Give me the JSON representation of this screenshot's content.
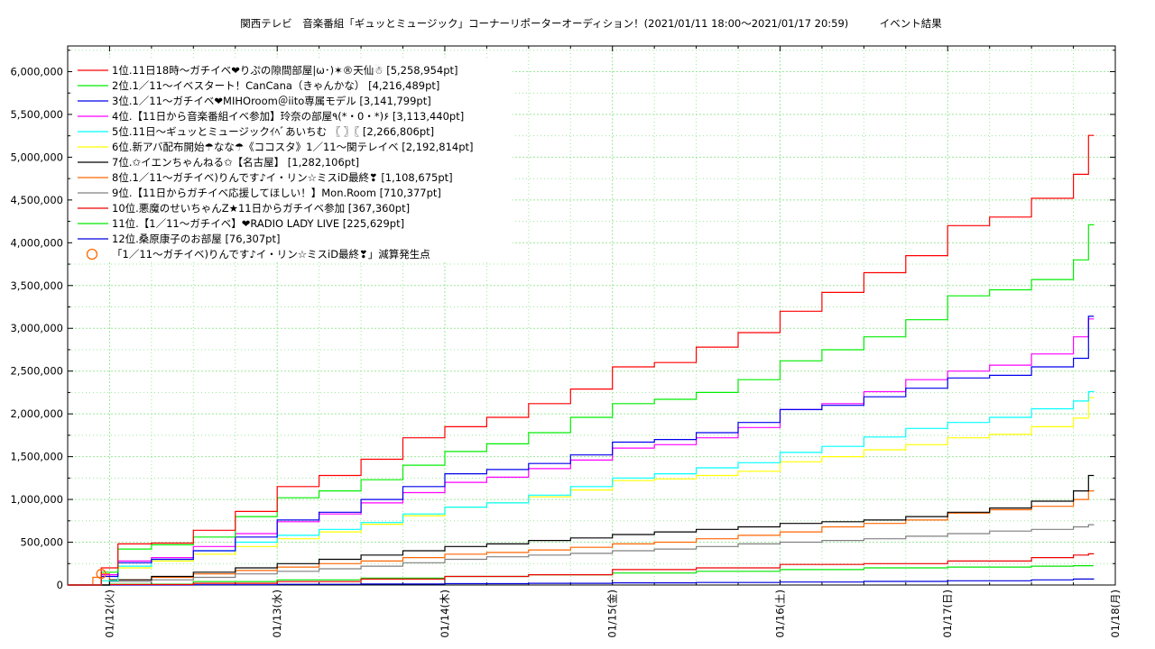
{
  "header": {
    "title": "関西テレビ　音楽番組「ギュッとミュージック」コーナーリポーターオーディション！(2021/01/11 18:00〜2021/01/17 20:59)　　　イベント結果"
  },
  "colors": {
    "grid": "#9be89b",
    "axis": "#000000",
    "marker": "#ff6a00"
  },
  "chart_data": {
    "type": "line",
    "xlim": [
      0,
      6
    ],
    "ylim": [
      0,
      6300000
    ],
    "y_ticks": [
      0,
      500000,
      1000000,
      1500000,
      2000000,
      2500000,
      3000000,
      3500000,
      4000000,
      4500000,
      5000000,
      5500000,
      6000000
    ],
    "y_tick_labels": [
      "0",
      "500,000",
      "1,000,000",
      "1,500,000",
      "2,000,000",
      "2,500,000",
      "3,000,000",
      "3,500,000",
      "4,000,000",
      "4,500,000",
      "5,000,000",
      "5,500,000",
      "6,000,000"
    ],
    "x_ticks": [
      0,
      1,
      2,
      3,
      4,
      5,
      6
    ],
    "x_tick_labels": [
      "01/12(火)",
      "01/13(水)",
      "01/14(木)",
      "01/15(金)",
      "01/16(土)",
      "01/17(日)",
      "01/18(月)"
    ],
    "x_start": -0.25,
    "x_end": 5.87,
    "grid": true,
    "legend_position": "top-left",
    "series": [
      {
        "name": "1位.11日18時〜ガチイベ❤りぷの隙間部屋|ω･)✶®天仙☃ [5,258,954pt]",
        "color": "#ff0000",
        "final": 5258954,
        "x": [
          -0.25,
          -0.05,
          0.05,
          0.25,
          0.5,
          0.75,
          1.0,
          1.25,
          1.5,
          1.75,
          2.0,
          2.25,
          2.5,
          2.75,
          3.0,
          3.25,
          3.5,
          3.75,
          4.0,
          4.25,
          4.5,
          4.75,
          5.0,
          5.25,
          5.5,
          5.75,
          5.84,
          5.87
        ],
        "y": [
          0,
          200000,
          480000,
          490000,
          640000,
          860000,
          1150000,
          1280000,
          1470000,
          1720000,
          1850000,
          1960000,
          2120000,
          2290000,
          2550000,
          2600000,
          2780000,
          2950000,
          3200000,
          3420000,
          3650000,
          3850000,
          4200000,
          4300000,
          4520000,
          4800000,
          5255000,
          5258954
        ]
      },
      {
        "name": "2位.1／11〜イベスタート！CanCana（きゃんかな） [4,216,489pt]",
        "color": "#00ee00",
        "final": 4216489,
        "x": [
          -0.25,
          -0.05,
          0.05,
          0.25,
          0.5,
          0.75,
          1.0,
          1.25,
          1.5,
          1.75,
          2.0,
          2.25,
          2.5,
          2.75,
          3.0,
          3.25,
          3.5,
          3.75,
          4.0,
          4.25,
          4.5,
          4.75,
          5.0,
          5.25,
          5.5,
          5.75,
          5.84,
          5.87
        ],
        "y": [
          0,
          150000,
          420000,
          470000,
          560000,
          800000,
          1020000,
          1100000,
          1230000,
          1400000,
          1560000,
          1650000,
          1780000,
          1960000,
          2120000,
          2170000,
          2250000,
          2400000,
          2620000,
          2750000,
          2900000,
          3100000,
          3380000,
          3450000,
          3570000,
          3800000,
          4210000,
          4216489
        ]
      },
      {
        "name": "3位.1／11〜ガチイベ❤MIHOroom＠iito専属モデル [3,141,799pt]",
        "color": "#0000ee",
        "final": 3141799,
        "x": [
          -0.25,
          -0.05,
          0.05,
          0.25,
          0.5,
          0.75,
          1.0,
          1.25,
          1.5,
          1.75,
          2.0,
          2.25,
          2.5,
          2.75,
          3.0,
          3.25,
          3.5,
          3.75,
          4.0,
          4.25,
          4.5,
          4.75,
          5.0,
          5.25,
          5.5,
          5.75,
          5.84,
          5.87
        ],
        "y": [
          0,
          100000,
          260000,
          300000,
          400000,
          560000,
          760000,
          850000,
          1000000,
          1150000,
          1300000,
          1350000,
          1420000,
          1520000,
          1670000,
          1700000,
          1780000,
          1900000,
          2050000,
          2100000,
          2200000,
          2300000,
          2420000,
          2450000,
          2550000,
          2650000,
          3140000,
          3141799
        ]
      },
      {
        "name": "4位.【11日から音楽番組イベ参加】玲奈の部屋٩(*・0・*)۶ [3,113,440pt]",
        "color": "#ff00ff",
        "final": 3113440,
        "x": [
          -0.25,
          -0.05,
          0.05,
          0.25,
          0.5,
          0.75,
          1.0,
          1.25,
          1.5,
          1.75,
          2.0,
          2.25,
          2.5,
          2.75,
          3.0,
          3.25,
          3.5,
          3.75,
          4.0,
          4.25,
          4.5,
          4.75,
          5.0,
          5.25,
          5.5,
          5.75,
          5.84,
          5.87
        ],
        "y": [
          0,
          120000,
          280000,
          320000,
          450000,
          600000,
          740000,
          830000,
          960000,
          1080000,
          1200000,
          1260000,
          1360000,
          1460000,
          1600000,
          1640000,
          1720000,
          1840000,
          2050000,
          2120000,
          2260000,
          2400000,
          2500000,
          2570000,
          2700000,
          2900000,
          3110000,
          3113440
        ]
      },
      {
        "name": "5位.11日〜ギュッとミュージックｲﾍﾞあいちむ 〖 〗〖 [2,266,806pt]",
        "color": "#00ffff",
        "final": 2266806,
        "x": [
          -0.25,
          -0.05,
          0.05,
          0.25,
          0.5,
          0.75,
          1.0,
          1.25,
          1.5,
          1.75,
          2.0,
          2.25,
          2.5,
          2.75,
          3.0,
          3.25,
          3.5,
          3.75,
          4.0,
          4.25,
          4.5,
          4.75,
          5.0,
          5.25,
          5.5,
          5.75,
          5.84,
          5.87
        ],
        "y": [
          0,
          50000,
          220000,
          300000,
          400000,
          500000,
          580000,
          650000,
          730000,
          830000,
          910000,
          960000,
          1050000,
          1150000,
          1250000,
          1300000,
          1370000,
          1430000,
          1550000,
          1620000,
          1730000,
          1830000,
          1900000,
          1960000,
          2060000,
          2150000,
          2260000,
          2266806
        ]
      },
      {
        "name": "6位.新アバ配布開始☂なな☂《ココスタ》1／11〜関テレイベ [2,192,814pt]",
        "color": "#ffff00",
        "final": 2192814,
        "x": [
          -0.25,
          -0.05,
          0.05,
          0.25,
          0.5,
          0.75,
          1.0,
          1.25,
          1.5,
          1.75,
          2.0,
          2.25,
          2.5,
          2.75,
          3.0,
          3.25,
          3.5,
          3.75,
          4.0,
          4.25,
          4.5,
          4.75,
          5.0,
          5.25,
          5.5,
          5.75,
          5.84,
          5.87
        ],
        "y": [
          0,
          50000,
          200000,
          280000,
          360000,
          450000,
          540000,
          620000,
          710000,
          810000,
          910000,
          960000,
          1030000,
          1110000,
          1220000,
          1240000,
          1280000,
          1330000,
          1440000,
          1500000,
          1580000,
          1640000,
          1720000,
          1760000,
          1850000,
          1950000,
          2190000,
          2192814
        ]
      },
      {
        "name": "7位.✩イエンちゃんねる✩【名古屋】 [1,282,106pt]",
        "color": "#000000",
        "final": 1282106,
        "x": [
          -0.25,
          0.0,
          0.25,
          0.5,
          0.75,
          1.0,
          1.25,
          1.5,
          1.75,
          2.0,
          2.25,
          2.5,
          2.75,
          3.0,
          3.25,
          3.5,
          3.75,
          4.0,
          4.25,
          4.5,
          4.75,
          5.0,
          5.25,
          5.5,
          5.75,
          5.84,
          5.87
        ],
        "y": [
          0,
          60000,
          100000,
          150000,
          200000,
          250000,
          300000,
          350000,
          400000,
          450000,
          480000,
          520000,
          550000,
          590000,
          620000,
          650000,
          680000,
          720000,
          740000,
          760000,
          800000,
          850000,
          900000,
          980000,
          1100000,
          1280000,
          1282106
        ]
      },
      {
        "name": "8位.1／11〜ガチイベ)りんです♪イ・リン☆ミスiD最終❣ [1,108,675pt]",
        "color": "#ff6600",
        "final": 1108675,
        "x": [
          -0.25,
          -0.1,
          -0.05,
          0.0,
          0.25,
          0.5,
          0.75,
          1.0,
          1.25,
          1.5,
          1.75,
          2.0,
          2.25,
          2.5,
          2.75,
          3.0,
          3.25,
          3.5,
          3.75,
          4.0,
          4.25,
          4.5,
          4.75,
          5.0,
          5.25,
          5.5,
          5.75,
          5.84,
          5.87
        ],
        "y": [
          0,
          90000,
          130000,
          60000,
          90000,
          130000,
          170000,
          210000,
          250000,
          280000,
          320000,
          360000,
          380000,
          410000,
          440000,
          480000,
          500000,
          540000,
          580000,
          620000,
          680000,
          720000,
          760000,
          840000,
          880000,
          920000,
          1000000,
          1100000,
          1108675
        ]
      },
      {
        "name": "9位.【11日からガチイベ応援してほしい！】Mon.Room [710,377pt]",
        "color": "#808080",
        "final": 710377,
        "x": [
          -0.25,
          0.0,
          0.25,
          0.5,
          0.75,
          1.0,
          1.25,
          1.5,
          1.75,
          2.0,
          2.25,
          2.5,
          2.75,
          3.0,
          3.25,
          3.5,
          3.75,
          4.0,
          4.25,
          4.5,
          4.75,
          5.0,
          5.25,
          5.5,
          5.75,
          5.84,
          5.87
        ],
        "y": [
          0,
          40000,
          60000,
          90000,
          130000,
          160000,
          190000,
          220000,
          260000,
          300000,
          330000,
          350000,
          370000,
          400000,
          420000,
          450000,
          480000,
          500000,
          520000,
          540000,
          570000,
          600000,
          630000,
          650000,
          680000,
          705000,
          710377
        ]
      },
      {
        "name": "10位.悪魔のせいちゃんZ★11日からガチイベ参加 [367,360pt]",
        "color": "#ee0000",
        "final": 367360,
        "x": [
          -0.25,
          0.0,
          0.5,
          1.0,
          1.5,
          2.0,
          2.5,
          3.0,
          3.5,
          4.0,
          4.5,
          5.0,
          5.5,
          5.75,
          5.84,
          5.87
        ],
        "y": [
          0,
          5000,
          20000,
          40000,
          70000,
          100000,
          120000,
          180000,
          200000,
          240000,
          250000,
          280000,
          320000,
          350000,
          365000,
          367360
        ]
      },
      {
        "name": "11位.【1／11〜ガチイベ】❤RADIO LADY LIVE [225,629pt]",
        "color": "#00e600",
        "final": 225629,
        "x": [
          -0.25,
          0.0,
          0.5,
          1.0,
          1.5,
          2.0,
          2.5,
          3.0,
          3.5,
          4.0,
          4.5,
          5.0,
          5.5,
          5.75,
          5.87
        ],
        "y": [
          0,
          10000,
          40000,
          60000,
          80000,
          100000,
          120000,
          140000,
          160000,
          180000,
          200000,
          210000,
          220000,
          225000,
          225629
        ]
      },
      {
        "name": "12位.桑原康子のお部屋 [76,307pt]",
        "color": "#0000dd",
        "final": 76307,
        "x": [
          -0.25,
          0.5,
          1.0,
          1.5,
          2.0,
          2.5,
          3.0,
          3.5,
          4.0,
          4.5,
          5.0,
          5.5,
          5.75,
          5.87
        ],
        "y": [
          0,
          3000,
          8000,
          12000,
          16000,
          20000,
          25000,
          30000,
          35000,
          42000,
          50000,
          60000,
          70000,
          76307
        ]
      }
    ],
    "marker_legend": {
      "label": "「1／11〜ガチイベ)りんです♪イ・リン☆ミスiD最終❣」減算発生点",
      "color": "#ff6a00",
      "points": [
        {
          "x": -0.05,
          "y": 130000
        }
      ]
    }
  }
}
